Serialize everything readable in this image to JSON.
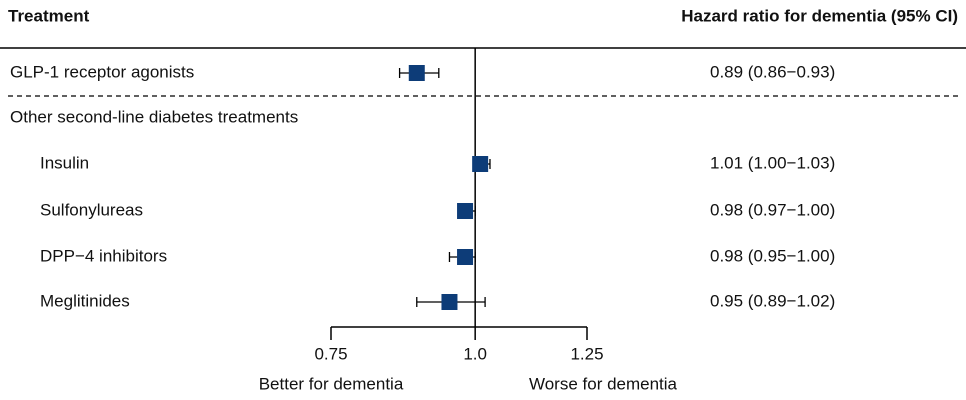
{
  "chart_data": {
    "type": "forest",
    "columns": [
      "Treatment",
      "Hazard ratio for dementia (95% CI)"
    ],
    "categories": [
      "GLP-1 receptor agonists",
      "Other second-line diabetes treatments",
      "Insulin",
      "Sulfonylureas",
      "DPP−4 inhibitors",
      "Meglitinides"
    ],
    "values": [
      0.89,
      null,
      1.01,
      0.98,
      0.98,
      0.95
    ],
    "lower": [
      0.86,
      null,
      1.0,
      0.97,
      0.95,
      0.89
    ],
    "upper": [
      0.93,
      null,
      1.03,
      1.0,
      1.0,
      1.02
    ],
    "value_labels": [
      "0.89 (0.86−0.93)",
      null,
      "1.01 (1.00−1.03)",
      "0.98 (0.97−1.00)",
      "0.98 (0.95−1.00)",
      "0.95 (0.89−1.02)"
    ],
    "xscale": "log",
    "xlim": [
      0.75,
      1.25
    ],
    "xticks": [
      0.75,
      {
        "value": 1,
        "label": "1.0"
      },
      1.25
    ],
    "reference_line": 1,
    "annotations": [
      "Better for dementia",
      "Worse for dementia"
    ],
    "color": "#0d3c78"
  }
}
